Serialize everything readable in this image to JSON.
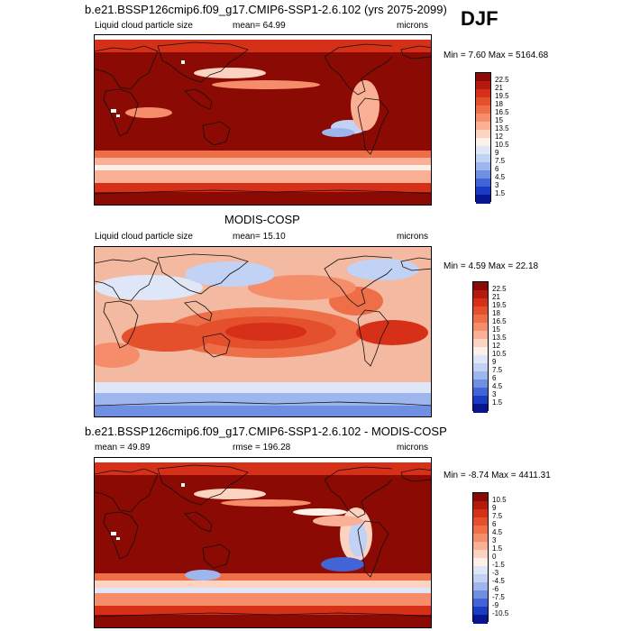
{
  "season": "DJF",
  "colors": {
    "dark_red": "#8b0a04",
    "land_outline": "#111111",
    "missing": "#ffffff"
  },
  "panels": [
    {
      "title": "b.e21.BSSP126cmip6.f09_g17.CMIP6-SSP1-2.6.102 (yrs 2075-2099)",
      "left_label": "Liquid cloud particle size",
      "center_label": "mean=  64.99",
      "right_label": "microns",
      "minmax": "Min =   7.60 Max = 5164.68",
      "theme": "model",
      "colorbar": {
        "labels": [
          "22.5",
          "21",
          "19.5",
          "18",
          "16.5",
          "15",
          "13.5",
          "12",
          "10.5",
          "9",
          "7.5",
          "6",
          "4.5",
          "3",
          "1.5"
        ],
        "colors": [
          "#8b0a04",
          "#b51a0e",
          "#d73019",
          "#e44f2c",
          "#ee6e48",
          "#f58c6a",
          "#f9b094",
          "#fcd3c0",
          "#fdf0e8",
          "#dfe6f8",
          "#c2d2f4",
          "#9db6ee",
          "#6f8fe3",
          "#4264d6",
          "#1a3cc4",
          "#08158f"
        ]
      }
    },
    {
      "title": "MODIS-COSP",
      "left_label": "Liquid cloud particle size",
      "center_label": "mean=  15.10",
      "right_label": "microns",
      "minmax": "Min =   4.59 Max =  22.18",
      "theme": "obs",
      "colorbar": {
        "labels": [
          "22.5",
          "21",
          "19.5",
          "18",
          "16.5",
          "15",
          "13.5",
          "12",
          "10.5",
          "9",
          "7.5",
          "6",
          "4.5",
          "3",
          "1.5"
        ],
        "colors": [
          "#8b0a04",
          "#b51a0e",
          "#d73019",
          "#e44f2c",
          "#ee6e48",
          "#f58c6a",
          "#f9b094",
          "#fcd3c0",
          "#fdf0e8",
          "#dfe6f8",
          "#c2d2f4",
          "#9db6ee",
          "#6f8fe3",
          "#4264d6",
          "#1a3cc4",
          "#08158f"
        ]
      }
    },
    {
      "title": "b.e21.BSSP126cmip6.f09_g17.CMIP6-SSP1-2.6.102 - MODIS-COSP",
      "left_label": "mean =  49.89",
      "center_label": "rmse = 196.28",
      "right_label": "microns",
      "minmax": "Min =  -8.74 Max = 4411.31",
      "theme": "diff",
      "colorbar": {
        "labels": [
          "10.5",
          "9",
          "7.5",
          "6",
          "4.5",
          "3",
          "1.5",
          "0",
          "-1.5",
          "-3",
          "-4.5",
          "-6",
          "-7.5",
          "-9",
          "-10.5"
        ],
        "colors": [
          "#8b0a04",
          "#b51a0e",
          "#d73019",
          "#e44f2c",
          "#ee6e48",
          "#f58c6a",
          "#f9b094",
          "#fcd3c0",
          "#fdf0e8",
          "#dfe6f8",
          "#c2d2f4",
          "#9db6ee",
          "#6f8fe3",
          "#4264d6",
          "#1a3cc4",
          "#08158f"
        ]
      }
    }
  ]
}
